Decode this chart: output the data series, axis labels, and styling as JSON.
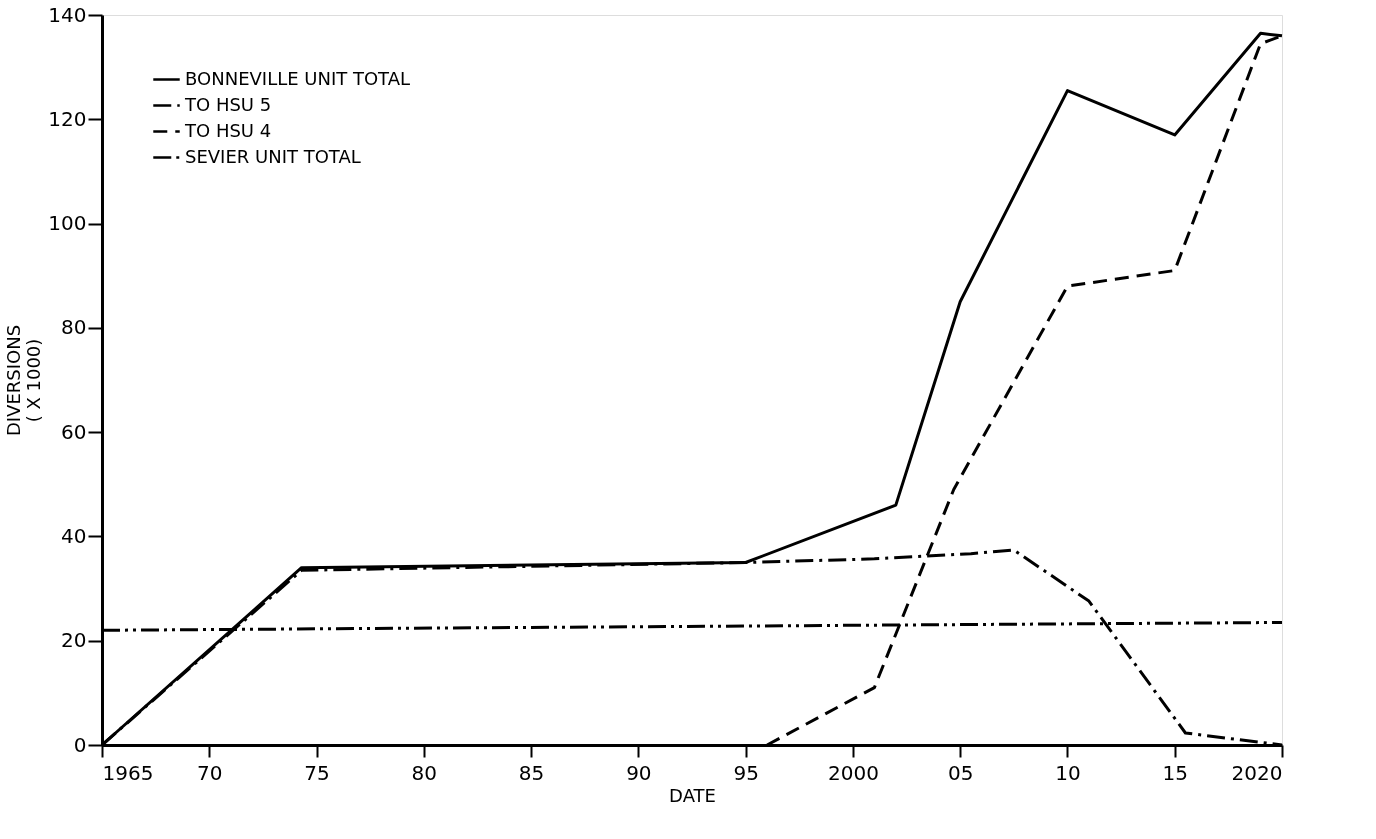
{
  "chart_data": {
    "type": "line",
    "xlabel": "DATE",
    "ylabel": "DIVERSIONS\n( X 1000)",
    "xlim": [
      1965,
      2020
    ],
    "ylim": [
      0,
      140
    ],
    "xticks": [
      1965,
      {
        "value": 1970,
        "label": "70"
      },
      {
        "value": 1975,
        "label": "75"
      },
      {
        "value": 1980,
        "label": "80"
      },
      {
        "value": 1985,
        "label": "85"
      },
      {
        "value": 1990,
        "label": "90"
      },
      {
        "value": 1995,
        "label": "95"
      },
      2000,
      {
        "value": 2005,
        "label": "05"
      },
      {
        "value": 2010,
        "label": "10"
      },
      {
        "value": 2015,
        "label": "15"
      },
      2020
    ],
    "yticks": [
      0,
      20,
      40,
      60,
      80,
      100,
      120,
      140
    ],
    "grid": false,
    "legend": "top left",
    "marker": "none",
    "series": [
      {
        "name": "BONNEVILLE UNIT TOTAL",
        "color": "#000000",
        "line_style": "solid",
        "x": [
          1965,
          1974.3,
          1995,
          2002,
          2005,
          2010,
          2015,
          2019,
          2020
        ],
        "values": [
          0,
          34,
          35,
          46,
          85,
          125.5,
          117,
          136.5,
          136
        ]
      },
      {
        "name": "TO HSU 5",
        "color": "#000000",
        "line_style": "dashdot",
        "x": [
          1965,
          1974.3,
          1995,
          2001,
          2005.5,
          2007.5,
          2011,
          2015.5,
          2020
        ],
        "values": [
          0,
          33.5,
          35,
          35.7,
          36.7,
          37.4,
          27.6,
          2.3,
          0
        ]
      },
      {
        "name": "TO HSU 4",
        "color": "#000000",
        "line_style": "dashed",
        "x": [
          1996,
          2001,
          2004.7,
          2010,
          2015,
          2019,
          2020
        ],
        "values": [
          0,
          11,
          49,
          88,
          91,
          134.5,
          136
        ]
      },
      {
        "name": "SEVIER UNIT TOTAL",
        "color": "#000000",
        "line_style": "dashdotdot",
        "x": [
          1965,
          2020
        ],
        "values": [
          22,
          23.5
        ]
      }
    ]
  }
}
